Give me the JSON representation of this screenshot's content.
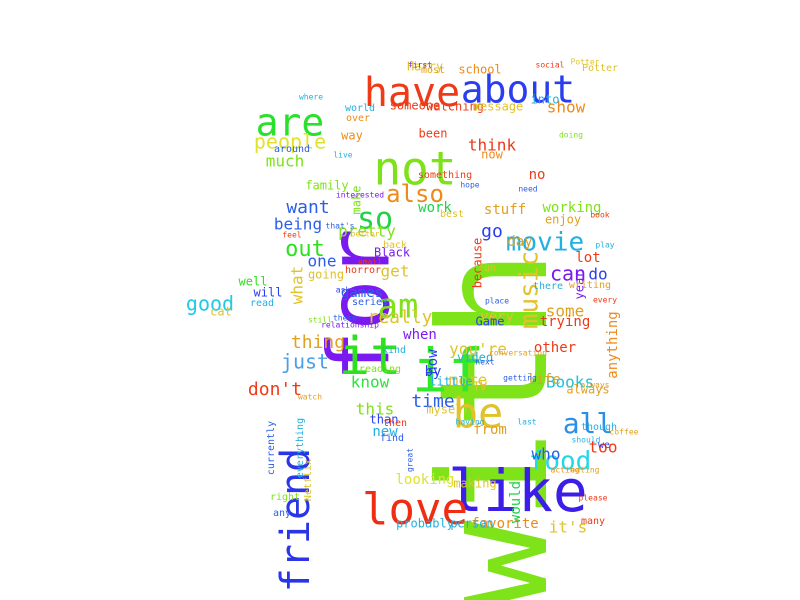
{
  "words": [
    {
      "text": "with",
      "color": "#7fe31a"
    },
    {
      "text": "for",
      "color": "#7a1af0"
    },
    {
      "text": "it",
      "color": "#2ee020"
    },
    {
      "text": "if",
      "color": "#32e82a"
    },
    {
      "text": "like",
      "color": "#3b1ee8"
    },
    {
      "text": "love",
      "color": "#ee2d12"
    },
    {
      "text": "have",
      "color": "#ee3a16"
    },
    {
      "text": "about",
      "color": "#2a3ef0"
    },
    {
      "text": "not",
      "color": "#7ee21a"
    },
    {
      "text": "are",
      "color": "#29e02a"
    },
    {
      "text": "friend",
      "color": "#2a35e8"
    },
    {
      "text": "be",
      "color": "#e0c22a"
    },
    {
      "text": "all",
      "color": "#2a8fe8"
    },
    {
      "text": "food",
      "color": "#22d8e8"
    },
    {
      "text": "am",
      "color": "#7fe21a"
    },
    {
      "text": "so",
      "color": "#1fd24a"
    },
    {
      "text": "movie",
      "color": "#22b0e0"
    },
    {
      "text": "music",
      "color": "#e0c22a"
    },
    {
      "text": "also",
      "color": "#ee8a1a"
    },
    {
      "text": "people",
      "color": "#dfe42a"
    },
    {
      "text": "out",
      "color": "#2ee020"
    },
    {
      "text": "good",
      "color": "#22c8e8"
    },
    {
      "text": "just",
      "color": "#4aa0e8"
    },
    {
      "text": "thing",
      "color": "#e0a020"
    },
    {
      "text": "don't",
      "color": "#ee3a16"
    },
    {
      "text": "know",
      "color": "#2ee040"
    },
    {
      "text": "this",
      "color": "#7fe21a"
    },
    {
      "text": "time",
      "color": "#2a5ee8"
    },
    {
      "text": "more",
      "color": "#e0c22a"
    },
    {
      "text": "you're",
      "color": "#e0c22a"
    },
    {
      "text": "Books",
      "color": "#1fc0d8"
    },
    {
      "text": "can",
      "color": "#7a1af0"
    },
    {
      "text": "do",
      "color": "#2a3ef0"
    },
    {
      "text": "some",
      "color": "#e0a020"
    },
    {
      "text": "really",
      "color": "#e0c22a"
    },
    {
      "text": "pretty",
      "color": "#7fe21a"
    },
    {
      "text": "want",
      "color": "#2a5ee8"
    },
    {
      "text": "one",
      "color": "#2a5ee8"
    },
    {
      "text": "get",
      "color": "#e0c22a"
    },
    {
      "text": "show",
      "color": "#ee8a1a"
    },
    {
      "text": "much",
      "color": "#7fe21a"
    },
    {
      "text": "think",
      "color": "#ee3a16"
    },
    {
      "text": "go",
      "color": "#2a3ef0"
    },
    {
      "text": "day",
      "color": "#e0a020"
    },
    {
      "text": "favorite",
      "color": "#ee8a1a"
    },
    {
      "text": "it's",
      "color": "#e0c22a"
    },
    {
      "text": "who",
      "color": "#2a5ee8"
    },
    {
      "text": "too",
      "color": "#ee3a16"
    },
    {
      "text": "from",
      "color": "#e0a020"
    },
    {
      "text": "other",
      "color": "#ee3a16"
    },
    {
      "text": "anything",
      "color": "#ee8a1a"
    },
    {
      "text": "what",
      "color": "#e0c22a"
    },
    {
      "text": "being",
      "color": "#2a5ee8"
    },
    {
      "text": "looking",
      "color": "#dfe42a"
    },
    {
      "text": "new",
      "color": "#22b0e0"
    },
    {
      "text": "by",
      "color": "#2a3ef0"
    },
    {
      "text": "when",
      "color": "#7a1af0"
    },
    {
      "text": "work",
      "color": "#1fd24a"
    },
    {
      "text": "stuff",
      "color": "#e0a020"
    },
    {
      "text": "trying",
      "color": "#ee3a16"
    },
    {
      "text": "life",
      "color": "#e0a020"
    },
    {
      "text": "working",
      "color": "#7fe21a"
    },
    {
      "text": "enjoy",
      "color": "#e0a020"
    },
    {
      "text": "lot",
      "color": "#ee3a16"
    },
    {
      "text": "year",
      "color": "#7a1af0"
    },
    {
      "text": "very",
      "color": "#e0c22a"
    },
    {
      "text": "how",
      "color": "#2a3ef0"
    },
    {
      "text": "little",
      "color": "#22b0e0"
    },
    {
      "text": "probably",
      "color": "#22b0e0"
    },
    {
      "text": "person",
      "color": "#22b0e0"
    },
    {
      "text": "making",
      "color": "#e0c22a"
    },
    {
      "text": "would",
      "color": "#1fd24a"
    },
    {
      "text": "games",
      "color": "#2a5ee8"
    },
    {
      "text": "Harry",
      "color": "#e0c22a"
    },
    {
      "text": "school",
      "color": "#ee8a1a"
    },
    {
      "text": "Potter",
      "color": "#e0c22a"
    },
    {
      "text": "most",
      "color": "#e0a020"
    },
    {
      "text": "first",
      "color": "#7a1af0"
    },
    {
      "text": "someone",
      "color": "#ee3a16"
    },
    {
      "text": "watching",
      "color": "#ee3a16"
    },
    {
      "text": "message",
      "color": "#e0c22a"
    },
    {
      "text": "into",
      "color": "#22b0e0"
    },
    {
      "text": "been",
      "color": "#ee3a16"
    },
    {
      "text": "now",
      "color": "#ee8a1a"
    },
    {
      "text": "no",
      "color": "#ee3a16"
    },
    {
      "text": "something",
      "color": "#ee3a16"
    },
    {
      "text": "because",
      "color": "#ee3a16"
    },
    {
      "text": "family",
      "color": "#7fe21a"
    },
    {
      "text": "make",
      "color": "#7fe21a"
    },
    {
      "text": "world",
      "color": "#22b0e0"
    },
    {
      "text": "over",
      "color": "#ee8a1a"
    },
    {
      "text": "way",
      "color": "#ee8a1a"
    },
    {
      "text": "around",
      "color": "#2a5ee8"
    },
    {
      "text": "where",
      "color": "#22b0e0"
    },
    {
      "text": "well",
      "color": "#2ee020"
    },
    {
      "text": "will",
      "color": "#2a3ef0"
    },
    {
      "text": "read",
      "color": "#22b0e0"
    },
    {
      "text": "cat",
      "color": "#e0c22a"
    },
    {
      "text": "going",
      "color": "#e0c22a"
    },
    {
      "text": "series",
      "color": "#2a5ee8"
    },
    {
      "text": "than",
      "color": "#2a3ef0"
    },
    {
      "text": "then",
      "color": "#ee3a16"
    },
    {
      "text": "find",
      "color": "#2a5ee8"
    },
    {
      "text": "kind",
      "color": "#22b0e0"
    },
    {
      "text": "reading",
      "color": "#7fe21a"
    },
    {
      "text": "horror",
      "color": "#ee3a16"
    },
    {
      "text": "Black",
      "color": "#7a1af0"
    },
    {
      "text": "back",
      "color": "#e0c22a"
    },
    {
      "text": "better",
      "color": "#e0c22a"
    },
    {
      "text": "interested",
      "color": "#7a1af0"
    },
    {
      "text": "Game",
      "color": "#2a3ef0"
    },
    {
      "text": "video",
      "color": "#22b0e0"
    },
    {
      "text": "TV",
      "color": "#e0c22a"
    },
    {
      "text": "myself",
      "color": "#e0c22a"
    },
    {
      "text": "currently",
      "color": "#2a5ee8"
    },
    {
      "text": "everything",
      "color": "#22b0e0"
    },
    {
      "text": "Netflix",
      "color": "#e0c22a"
    },
    {
      "text": "right",
      "color": "#7fe21a"
    },
    {
      "text": "any",
      "color": "#2a5ee8"
    },
    {
      "text": "always",
      "color": "#e0a020"
    },
    {
      "text": "though",
      "color": "#22b0e0"
    },
    {
      "text": "coffee",
      "color": "#e0a020"
    },
    {
      "text": "we",
      "color": "#2a3ef0"
    },
    {
      "text": "should",
      "color": "#22b0e0"
    },
    {
      "text": "please",
      "color": "#ee3a16"
    },
    {
      "text": "many",
      "color": "#ee3a16"
    },
    {
      "text": "getting",
      "color": "#2a5ee8"
    },
    {
      "text": "conversation",
      "color": "#e0a020"
    },
    {
      "text": "place",
      "color": "#2a5ee8"
    },
    {
      "text": "writing",
      "color": "#e0a020"
    },
    {
      "text": "every",
      "color": "#ee3a16"
    },
    {
      "text": "there",
      "color": "#22b0e0"
    },
    {
      "text": "fun",
      "color": "#e0c22a"
    },
    {
      "text": "best",
      "color": "#e0c22a"
    },
    {
      "text": "social",
      "color": "#ee3a16"
    },
    {
      "text": "doing",
      "color": "#7fe21a"
    },
    {
      "text": "live",
      "color": "#22b0e0"
    },
    {
      "text": "hope",
      "color": "#2a5ee8"
    },
    {
      "text": "need",
      "color": "#2a5ee8"
    },
    {
      "text": "book",
      "color": "#ee3a16"
    },
    {
      "text": "play",
      "color": "#22b0e0"
    },
    {
      "text": "feel",
      "color": "#ee3a16"
    },
    {
      "text": "that's",
      "color": "#2a5ee8"
    },
    {
      "text": "email",
      "color": "#ee3a16"
    },
    {
      "text": "ask",
      "color": "#2a3ef0"
    },
    {
      "text": "still",
      "color": "#7fe21a"
    },
    {
      "text": "these",
      "color": "#2a5ee8"
    },
    {
      "text": "relationship",
      "color": "#7a1af0"
    },
    {
      "text": "watch",
      "color": "#e0a020"
    },
    {
      "text": "great",
      "color": "#2a5ee8"
    },
    {
      "text": "next",
      "color": "#2a5ee8"
    },
    {
      "text": "having",
      "color": "#22b0e0"
    },
    {
      "text": "Potter",
      "color": "#e0c22a"
    },
    {
      "text": "acting",
      "color": "#ee8a1a"
    },
    {
      "text": "eating",
      "color": "#e0a020"
    },
    {
      "text": "last",
      "color": "#22b0e0"
    },
    {
      "text": "always",
      "color": "#e0a020"
    }
  ]
}
